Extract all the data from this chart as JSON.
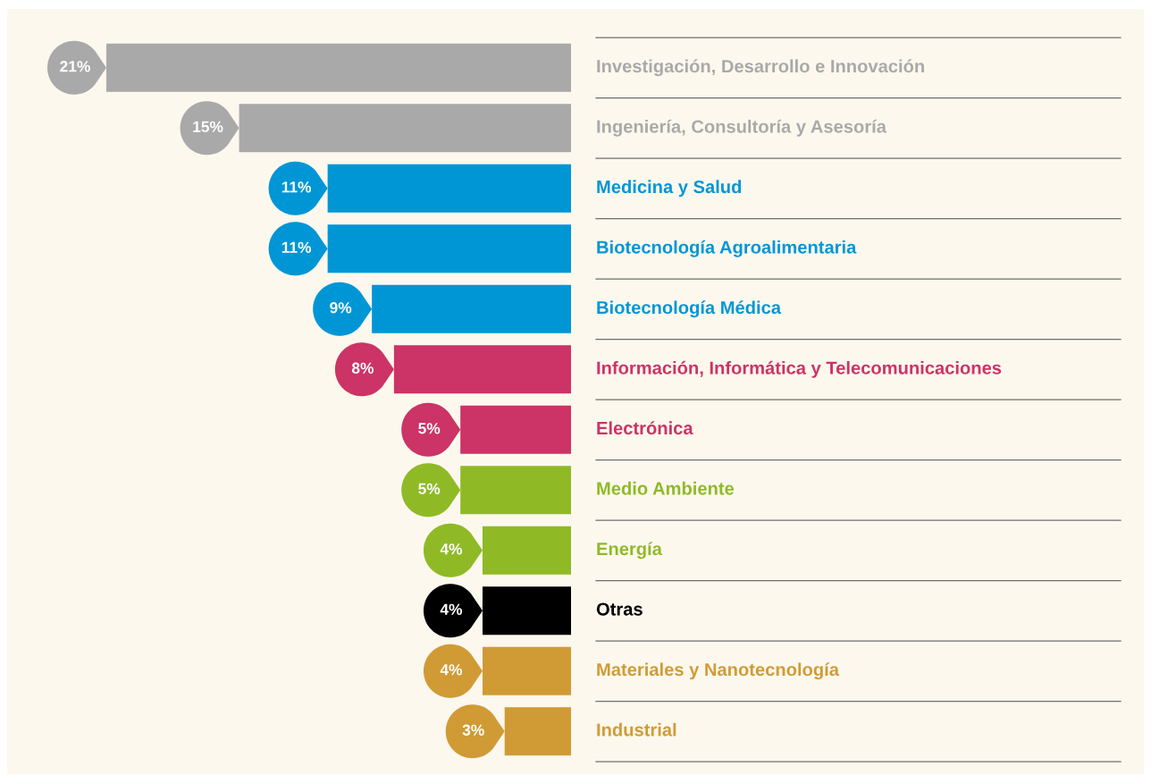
{
  "chart_data": {
    "type": "bar",
    "orientation": "horizontal",
    "categories": [
      "Investigación, Desarrollo e Innovación",
      "Ingeniería, Consultoría y Asesoría",
      "Medicina y Salud",
      "Biotecnología Agroalimentaria",
      "Biotecnología Médica",
      "Información, Informática y Telecomunicaciones",
      "Electrónica",
      "Medio Ambiente",
      "Energía",
      "Otras",
      "Materiales y Nanotecnología",
      "Industrial"
    ],
    "values": [
      21,
      15,
      11,
      11,
      9,
      8,
      5,
      5,
      4,
      4,
      4,
      3
    ],
    "value_labels": [
      "21%",
      "15%",
      "11%",
      "11%",
      "9%",
      "8%",
      "5%",
      "5%",
      "4%",
      "4%",
      "4%",
      "3%"
    ],
    "colors": [
      "#a9a9a9",
      "#a9a9a9",
      "#0096d6",
      "#0096d6",
      "#0096d6",
      "#cc3366",
      "#cc3366",
      "#8fba26",
      "#8fba26",
      "#000000",
      "#d09b35",
      "#d09b35"
    ],
    "data_labels": true,
    "tick_labels": false
  }
}
